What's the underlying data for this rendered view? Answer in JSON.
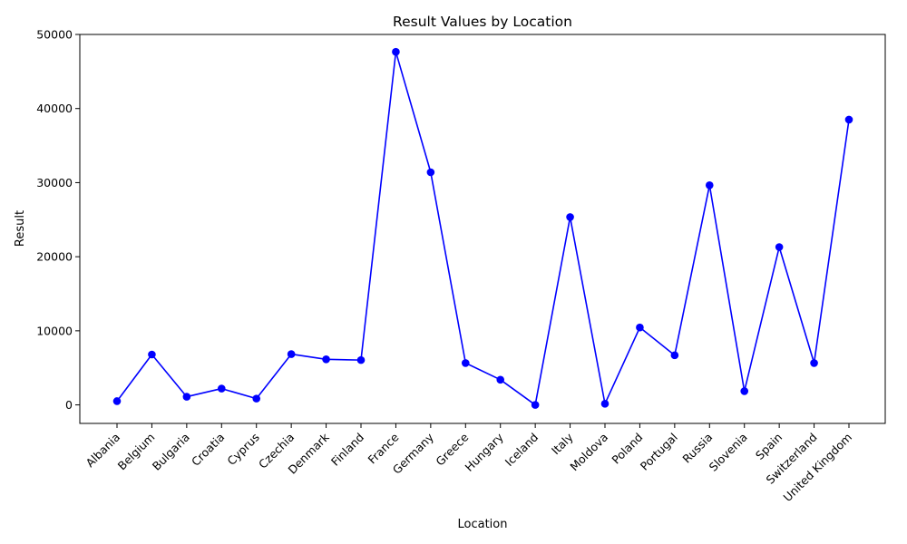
{
  "chart_data": {
    "type": "line",
    "title": "Result Values by Location",
    "xlabel": "Location",
    "ylabel": "Result",
    "categories": [
      "Albania",
      "Belgium",
      "Bulgaria",
      "Croatia",
      "Cyprus",
      "Czechia",
      "Denmark",
      "Finland",
      "France",
      "Germany",
      "Greece",
      "Hungary",
      "Iceland",
      "Italy",
      "Moldova",
      "Poland",
      "Portugal",
      "Russia",
      "Slovenia",
      "Spain",
      "Switzerland",
      "United Kingdom"
    ],
    "series": [
      {
        "values": [
          500,
          6800,
          1100,
          2200,
          850,
          6850,
          6150,
          6050,
          47650,
          31400,
          5650,
          3400,
          0,
          25350,
          150,
          10450,
          6700,
          29650,
          1850,
          21300,
          5650,
          38500
        ]
      }
    ],
    "yticks": [
      0,
      10000,
      20000,
      30000,
      40000,
      50000
    ],
    "ylim": [
      -2500,
      50000
    ],
    "grid": false,
    "legend": "none",
    "line_color": "#0000ff",
    "marker_color": "#0000ff"
  }
}
